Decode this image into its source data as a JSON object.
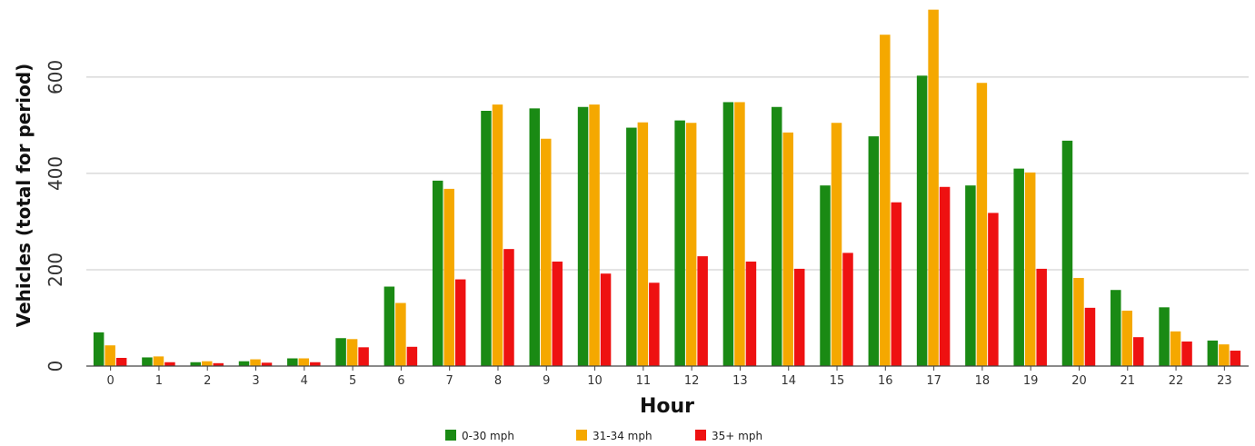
{
  "chart_data": {
    "type": "bar",
    "xlabel": "Hour",
    "ylabel": "Vehicles (total for period)",
    "ylim": [
      0,
      745
    ],
    "yticks": [
      0,
      200,
      400,
      600
    ],
    "grid": true,
    "legend_position": "bottom",
    "categories": [
      "0",
      "1",
      "2",
      "3",
      "4",
      "5",
      "6",
      "7",
      "8",
      "9",
      "10",
      "11",
      "12",
      "13",
      "14",
      "15",
      "16",
      "17",
      "18",
      "19",
      "20",
      "21",
      "22",
      "23"
    ],
    "series": [
      {
        "name": "0-30 mph",
        "color": "#1a8a14",
        "values": [
          70,
          18,
          8,
          10,
          16,
          58,
          165,
          385,
          530,
          535,
          538,
          495,
          510,
          548,
          538,
          375,
          477,
          603,
          375,
          410,
          468,
          158,
          122,
          53
        ]
      },
      {
        "name": "31-34 mph",
        "color": "#f5a800",
        "values": [
          43,
          20,
          10,
          14,
          16,
          56,
          131,
          368,
          543,
          472,
          543,
          506,
          505,
          548,
          485,
          505,
          688,
          740,
          588,
          402,
          183,
          115,
          72,
          45
        ]
      },
      {
        "name": "35+ mph",
        "color": "#ee1111",
        "values": [
          17,
          8,
          6,
          7,
          8,
          39,
          40,
          180,
          243,
          217,
          192,
          173,
          228,
          217,
          202,
          235,
          340,
          372,
          318,
          202,
          121,
          60,
          51,
          32
        ]
      }
    ]
  }
}
